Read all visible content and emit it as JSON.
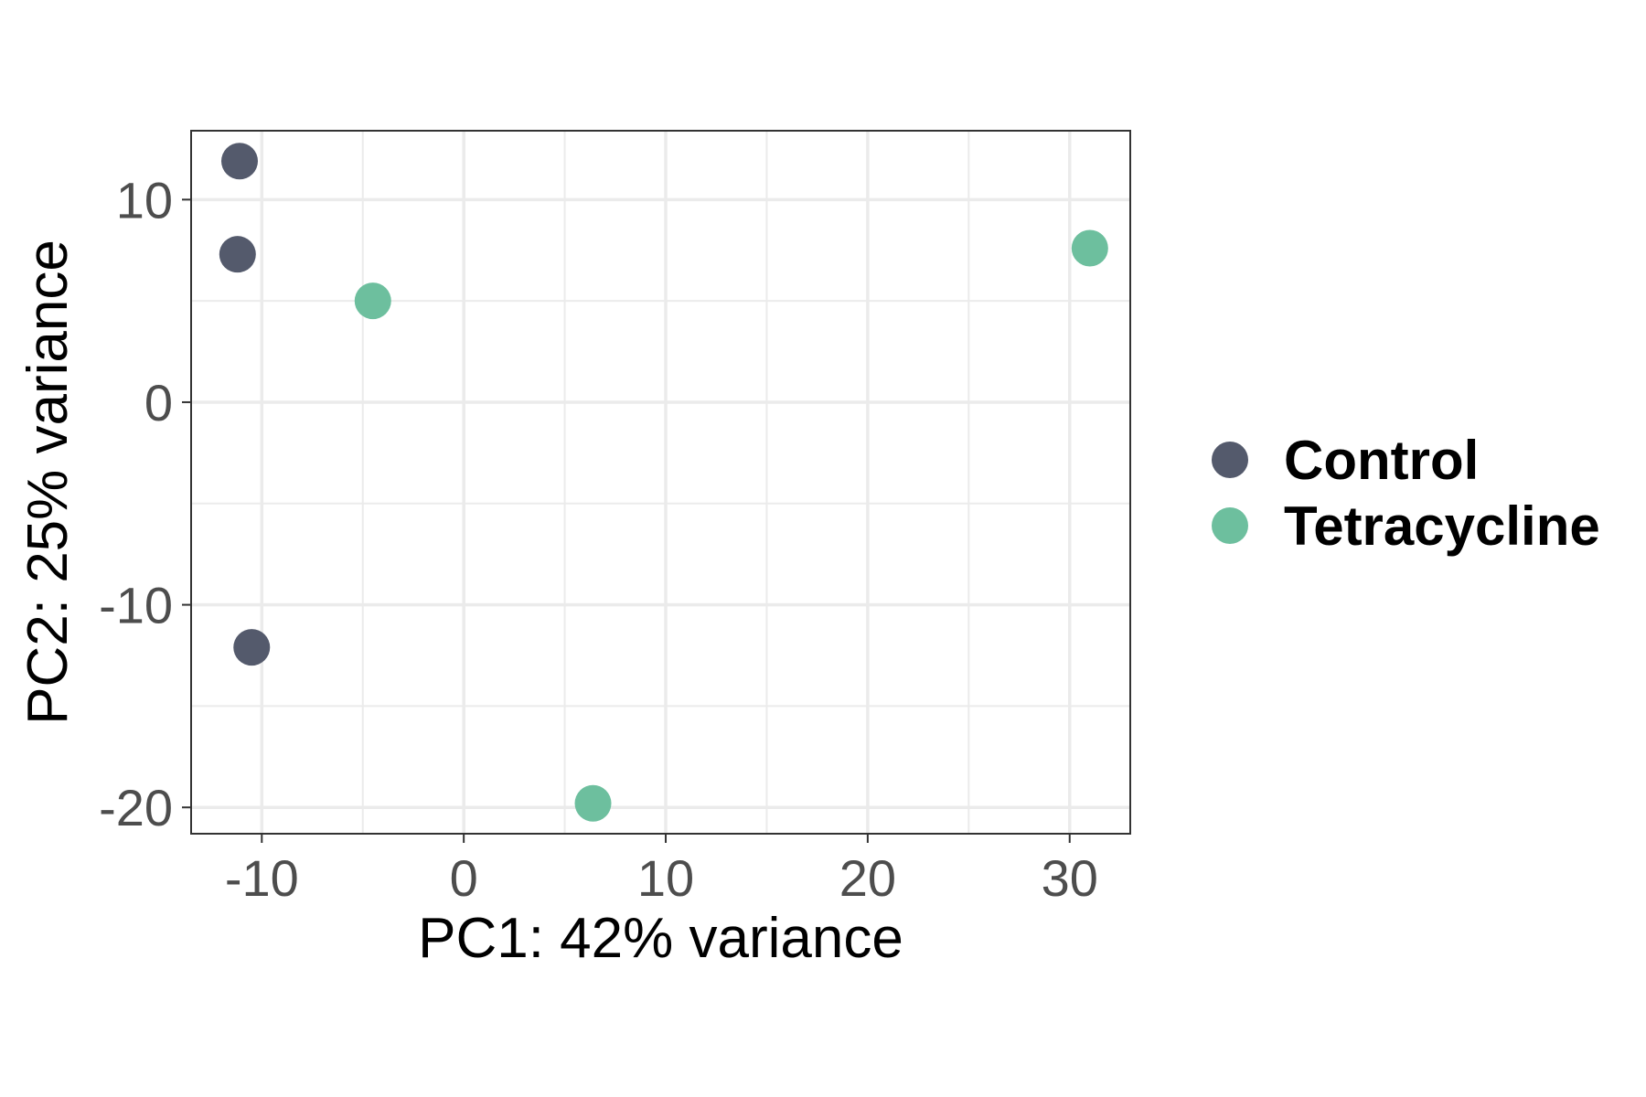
{
  "chart_data": {
    "type": "scatter",
    "xlabel": "PC1: 42% variance",
    "ylabel": "PC2: 25% variance",
    "xlim": [
      -13.5,
      33
    ],
    "ylim": [
      -21.3,
      13.4
    ],
    "xticks": [
      -10,
      0,
      10,
      20,
      30
    ],
    "yticks": [
      10,
      0,
      -10,
      -20
    ],
    "xtick_labels": [
      "-10",
      "0",
      "10",
      "20",
      "30"
    ],
    "ytick_labels": [
      "10",
      "0",
      "-10",
      "-20"
    ],
    "grid": true,
    "legend_position": "right",
    "series": [
      {
        "name": "Control",
        "color": "#545a6c",
        "points": [
          {
            "x": -11.1,
            "y": 11.9
          },
          {
            "x": -11.2,
            "y": 7.3
          },
          {
            "x": -10.5,
            "y": -12.1
          }
        ]
      },
      {
        "name": "Tetracycline",
        "color": "#6dbf9e",
        "points": [
          {
            "x": -4.5,
            "y": 5.0
          },
          {
            "x": 31.0,
            "y": 7.6
          },
          {
            "x": 6.4,
            "y": -19.8
          }
        ]
      }
    ]
  }
}
